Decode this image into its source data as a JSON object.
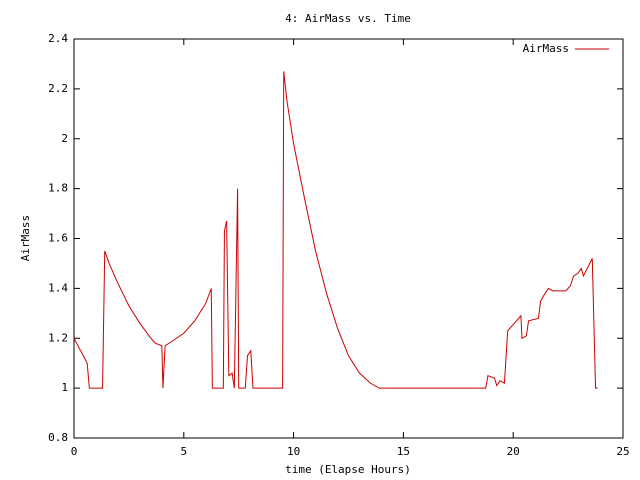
{
  "chart_data": {
    "type": "line",
    "title": "4: AirMass vs. Time",
    "xlabel": "time (Elapse Hours)",
    "ylabel": "AirMass",
    "legend": "top-right",
    "grid": false,
    "xlim": [
      0,
      25
    ],
    "xticks": [
      0,
      5,
      10,
      15,
      20,
      25
    ],
    "ylim": [
      0.8,
      2.4
    ],
    "yticks": [
      0.8,
      1,
      1.2,
      1.4,
      1.6,
      1.8,
      2,
      2.2,
      2.4
    ],
    "x": [
      0,
      0.3,
      0.6,
      0.7,
      1.3,
      1.4,
      1.6,
      2.0,
      2.5,
      3.0,
      3.5,
      3.7,
      4.0,
      4.05,
      4.15,
      4.5,
      5.0,
      5.5,
      6.0,
      6.25,
      6.3,
      6.8,
      6.85,
      6.95,
      7.05,
      7.2,
      7.3,
      7.45,
      7.5,
      7.8,
      7.9,
      8.05,
      8.15,
      9.5,
      9.55,
      9.7,
      10.0,
      10.5,
      11.0,
      11.5,
      12.0,
      12.5,
      13.0,
      13.5,
      13.9,
      18.75,
      18.85,
      19.15,
      19.25,
      19.4,
      19.6,
      19.75,
      20.05,
      20.35,
      20.4,
      20.6,
      20.7,
      21.15,
      21.25,
      21.45,
      21.6,
      21.8,
      22.4,
      22.6,
      22.75,
      22.95,
      23.1,
      23.2,
      23.6,
      23.75,
      23.85
    ],
    "series": [
      {
        "name": "AirMass",
        "color": "#cc0000",
        "values": [
          1.2,
          1.15,
          1.1,
          1.0,
          1.0,
          1.55,
          1.5,
          1.42,
          1.33,
          1.26,
          1.2,
          1.18,
          1.17,
          1.0,
          1.17,
          1.19,
          1.22,
          1.27,
          1.34,
          1.4,
          1.0,
          1.0,
          1.63,
          1.67,
          1.05,
          1.06,
          1.0,
          1.8,
          1.0,
          1.0,
          1.13,
          1.15,
          1.0,
          1.0,
          2.27,
          2.15,
          1.98,
          1.76,
          1.55,
          1.38,
          1.24,
          1.13,
          1.06,
          1.02,
          1.0,
          1.0,
          1.05,
          1.04,
          1.01,
          1.03,
          1.02,
          1.23,
          1.26,
          1.29,
          1.2,
          1.21,
          1.27,
          1.28,
          1.35,
          1.38,
          1.4,
          1.39,
          1.39,
          1.41,
          1.45,
          1.46,
          1.48,
          1.45,
          1.52,
          1.0,
          1.0
        ]
      }
    ]
  }
}
